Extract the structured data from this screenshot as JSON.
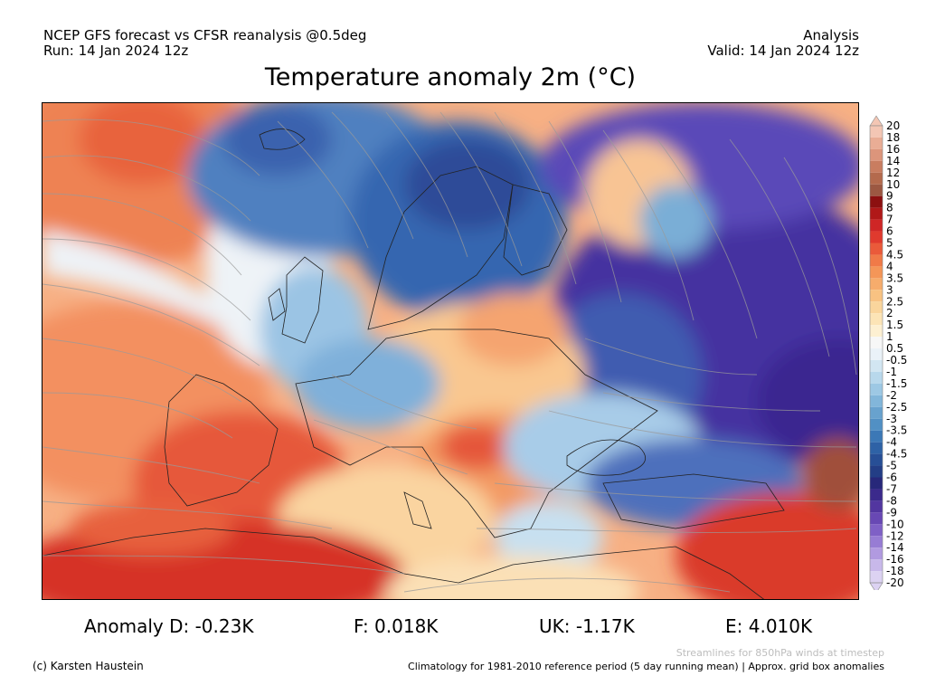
{
  "header": {
    "line1_left": "NCEP GFS forecast vs CFSR reanalysis @0.5deg",
    "line2_left": "Run: 14 Jan 2024 12z",
    "line1_right": "Analysis",
    "line2_right": "Valid: 14 Jan 2024 12z"
  },
  "title": "Temperature anomaly 2m (°C)",
  "colorbar": {
    "levels": [
      "20",
      "18",
      "16",
      "14",
      "12",
      "10",
      "9",
      "8",
      "7",
      "6",
      "5",
      "4.5",
      "4",
      "3.5",
      "3",
      "2.5",
      "2",
      "1.5",
      "1",
      "0.5",
      "-0.5",
      "-1",
      "-1.5",
      "-2",
      "-2.5",
      "-3",
      "-3.5",
      "-4",
      "-4.5",
      "-5",
      "-6",
      "-7",
      "-8",
      "-9",
      "-10",
      "-12",
      "-14",
      "-16",
      "-18",
      "-20"
    ],
    "colors": [
      "#f3c6b4",
      "#e9ad95",
      "#dc957b",
      "#c97d60",
      "#b46a4d",
      "#9c5842",
      "#8c1010",
      "#b01818",
      "#cf2626",
      "#e03a2e",
      "#ea5a3a",
      "#f07a48",
      "#f49658",
      "#f6ac6c",
      "#f8c282",
      "#fad59c",
      "#fce4b6",
      "#fdf0d2",
      "#f7f7f7",
      "#eaf2f8",
      "#d2e6f2",
      "#b8d8ec",
      "#9dc8e4",
      "#82b6da",
      "#68a2ce",
      "#5190c4",
      "#3c78b6",
      "#2e62a6",
      "#274f96",
      "#233e86",
      "#27287a",
      "#3b2a8c",
      "#5236a0",
      "#6848b4",
      "#7f60c6",
      "#977cd4",
      "#b19ae0",
      "#c8b8ea",
      "#dcd2f2"
    ]
  },
  "map": {
    "ocean_color": "#f7ae80",
    "land_colors": {
      "scandinavia": "#3566b0",
      "russia": "#4a37a0",
      "central_europe": "#f8c48e",
      "iberia": "#e8583a",
      "north_africa": "#d83428",
      "turkey": "#6b8cc8"
    }
  },
  "stats": {
    "d": "Anomaly D: -0.23K",
    "f": "F: 0.018K",
    "uk": "UK: -1.17K",
    "e": "E: 4.010K"
  },
  "footer": {
    "streamlines": "Streamlines for 850hPa winds at timestep",
    "copyright": "(c) Karsten Haustein",
    "climatology": "Climatology for 1981-2010 reference period (5 day running mean) | Approx. grid box anomalies"
  }
}
